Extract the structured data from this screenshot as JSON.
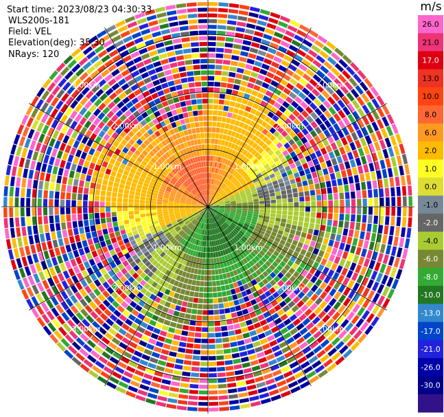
{
  "info": {
    "start_time": "Start time: 2023/08/23 04:30:33",
    "instrument": "WLS200s-181",
    "field": "Field: VEL",
    "elevation": "Elevation(deg): 35.30",
    "nrays": "NRays: 120"
  },
  "chart_data": {
    "type": "ppi",
    "field": "VEL",
    "instrument": "WLS200s-181",
    "elevation_deg": 35.3,
    "n_rays": 120,
    "max_range_km": 3.6,
    "range_rings_km": [
      1.0,
      2.0,
      3.0
    ],
    "range_ring_labels": [
      "1.00km",
      "1.00km",
      "1.00km",
      "1.00km",
      "2.00km",
      "2.00km",
      "2.00km",
      "2.00km",
      "3.00km",
      "3.00km",
      "3.00km",
      "3.00km"
    ],
    "colorbar": {
      "title": "m/s",
      "ticks": [
        "26.0",
        "21.0",
        "17.0",
        "13.0",
        "10.0",
        "8.0",
        "6.0",
        "2.0",
        "1.0",
        "0.0",
        "-1.0",
        "-2.0",
        "-4.0",
        "-6.0",
        "-8.0",
        "-10.0",
        "-13.0",
        "-17.0",
        "-21.0",
        "-26.0",
        "-30.0"
      ],
      "colors": [
        "#ff66cc",
        "#ee3377",
        "#dd0011",
        "#ee3322",
        "#ff4411",
        "#ff6633",
        "#ff9922",
        "#ffbb00",
        "#ffff22",
        "#dddd33",
        "#778899",
        "#666666",
        "#aacc33",
        "#778833",
        "#33aa33",
        "#227722",
        "#3388cc",
        "#0044cc",
        "#2222dd",
        "#0000aa",
        "#000088",
        "#331188"
      ]
    },
    "regions": [
      {
        "name": "noisy outer ranges",
        "from_km": 1.9,
        "to_km": 3.6,
        "values": "random noise across full scale"
      },
      {
        "name": "north sector",
        "azimuth_deg": [
          315,
          60
        ],
        "values_ms": [
          2,
          8
        ]
      },
      {
        "name": "south sector",
        "azimuth_deg": [
          135,
          225
        ],
        "values_ms": [
          -8,
          -2
        ]
      },
      {
        "name": "east-west band",
        "azimuth_deg": [
          60,
          120
        ],
        "values_ms": [
          -1,
          1
        ]
      }
    ]
  }
}
